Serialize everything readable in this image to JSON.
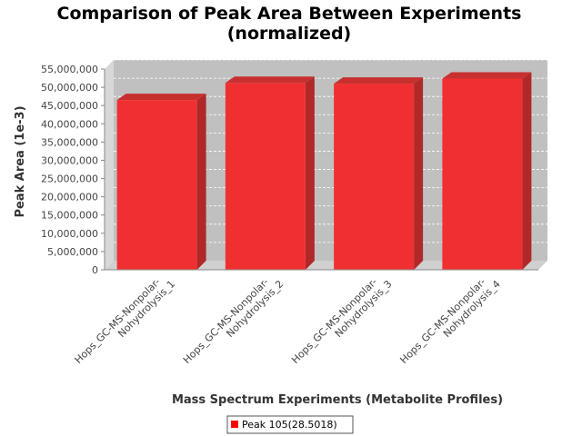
{
  "chart_data": {
    "type": "bar",
    "title_line1": "Comparison of Peak Area Between Experiments",
    "title_line2": "(normalized)",
    "xlabel": "Mass Spectrum Experiments (Metabolite Profiles)",
    "ylabel": "Peak Area (1e-3)",
    "ylim": [
      0,
      55000000
    ],
    "yticks": [
      {
        "value": 0,
        "label": "0"
      },
      {
        "value": 5000000,
        "label": "5,000,000"
      },
      {
        "value": 10000000,
        "label": "10,000,000"
      },
      {
        "value": 15000000,
        "label": "15,000,000"
      },
      {
        "value": 20000000,
        "label": "20,000,000"
      },
      {
        "value": 25000000,
        "label": "25,000,000"
      },
      {
        "value": 30000000,
        "label": "30,000,000"
      },
      {
        "value": 35000000,
        "label": "35,000,000"
      },
      {
        "value": 40000000,
        "label": "40,000,000"
      },
      {
        "value": 45000000,
        "label": "45,000,000"
      },
      {
        "value": 50000000,
        "label": "50,000,000"
      },
      {
        "value": 55000000,
        "label": "55,000,000"
      }
    ],
    "categories": [
      {
        "line1": "Hops_GC-MS-Nonpolar-",
        "line2": "Nohydrolysis_1"
      },
      {
        "line1": "Hops_GC-MS-Nonpolar-",
        "line2": "Nohydrolysis_2"
      },
      {
        "line1": "Hops_GC-MS-Nonpolar-",
        "line2": "Nohydrolysis_3"
      },
      {
        "line1": "Hops_GC-MS-Nonpolar-",
        "line2": "Nohydrolysis_4"
      }
    ],
    "series": [
      {
        "name": "Peak 105(28.5018)",
        "values": [
          46500000,
          51200000,
          51000000,
          52400000
        ]
      }
    ],
    "grid": true,
    "legend_position": "bottom",
    "colors": {
      "bar_front": "#f03030",
      "bar_side": "#b02828",
      "bar_top": "#c83030",
      "plot_back": "#c0c0c0",
      "plot_left_wall": "#d8d8d8",
      "plot_floor": "#d0d0d0",
      "legend_swatch": "#ff0000"
    }
  }
}
